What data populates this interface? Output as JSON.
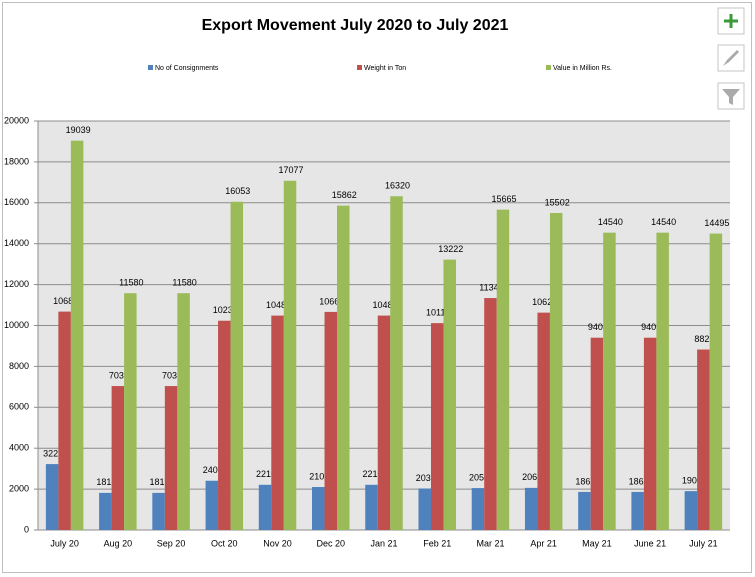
{
  "chart_data": {
    "type": "bar",
    "title": "Export Movement July 2020 to July 2021",
    "categories": [
      "July 20",
      "Aug 20",
      "Sep 20",
      "Oct 20",
      "Nov 20",
      "Dec 20",
      "Jan 21",
      "Feb 21",
      "Mar 21",
      "Apr 21",
      "May 21",
      "June 21",
      "July 21"
    ],
    "series": [
      {
        "name": "No of Consignments",
        "color": "#4f81bd",
        "values": [
          3223,
          1816,
          1816,
          2408,
          2210,
          2102,
          2210,
          2030,
          2050,
          2060,
          1862,
          1862,
          1900
        ]
      },
      {
        "name": "Weight in Ton",
        "color": "#c0504d",
        "values": [
          10680,
          7039,
          7039,
          10233,
          10484,
          10665,
          10484,
          10115,
          11342,
          10629,
          9403,
          9403,
          8825
        ]
      },
      {
        "name": "Value in Million Rs.",
        "color": "#9bbb59",
        "values": [
          19039,
          11580,
          11580,
          16053,
          17077,
          15862,
          16320,
          13222,
          15665,
          15502,
          14540,
          14540,
          14495
        ]
      }
    ],
    "ylim": [
      0,
      20000
    ],
    "yticks": [
      0,
      2000,
      4000,
      6000,
      8000,
      10000,
      12000,
      14000,
      16000,
      18000,
      20000
    ],
    "grid": true,
    "legend": "top"
  }
}
